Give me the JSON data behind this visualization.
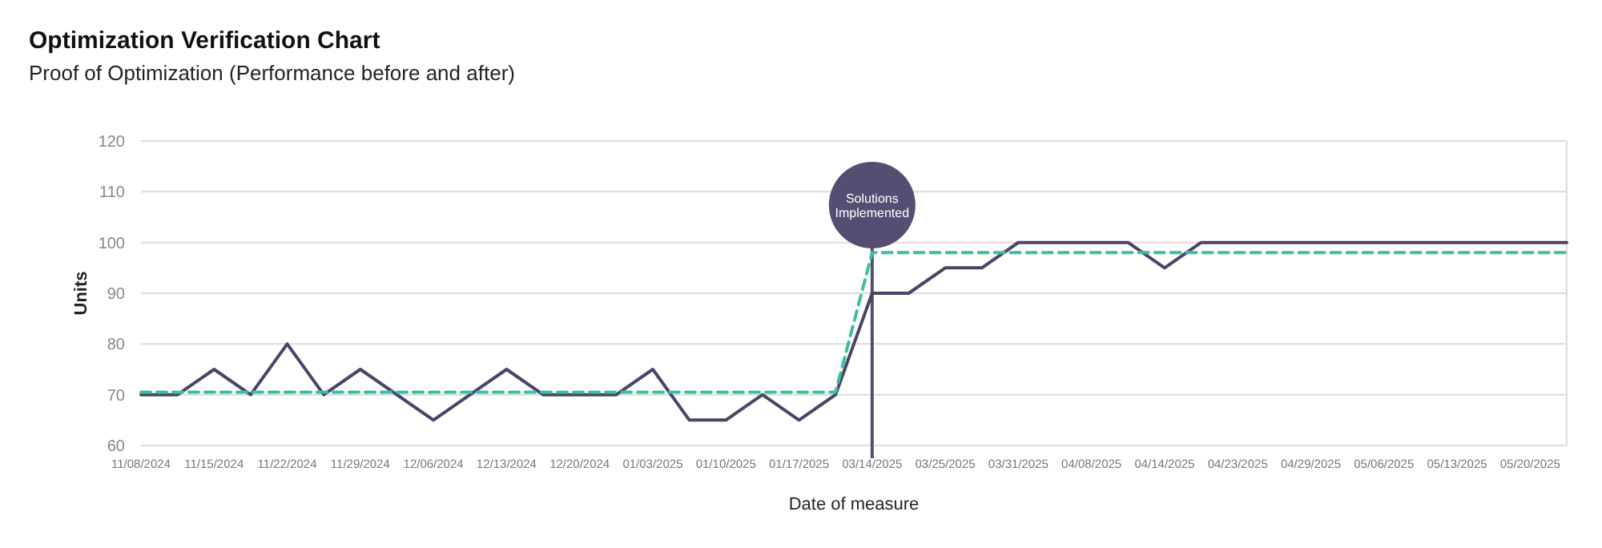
{
  "chart_data": {
    "type": "line",
    "title": "Optimization Verification Chart",
    "subtitle": "Proof of Optimization (Performance before and after)",
    "xlabel": "Date of measure",
    "ylabel": "Units",
    "categories": [
      "11/08/2024",
      null,
      "11/15/2024",
      null,
      "11/22/2024",
      null,
      "11/29/2024",
      null,
      "12/06/2024",
      null,
      "12/13/2024",
      null,
      "12/20/2024",
      null,
      "01/03/2025",
      null,
      "01/10/2025",
      null,
      "01/17/2025",
      null,
      "03/14/2025",
      null,
      "03/25/2025",
      null,
      "03/31/2025",
      null,
      "04/08/2025",
      null,
      "04/14/2025",
      null,
      "04/23/2025",
      null,
      "04/29/2025",
      null,
      "05/06/2025",
      null,
      "05/13/2025",
      null,
      "05/20/2025",
      null
    ],
    "series": [
      {
        "color": "#4a4566",
        "line_style": "solid",
        "values": [
          70,
          70,
          75,
          70,
          80,
          70,
          75,
          70,
          65,
          70,
          75,
          70,
          70,
          70,
          75,
          65,
          65,
          70,
          65,
          70,
          90,
          90,
          95,
          95,
          100,
          100,
          100,
          100,
          95,
          100,
          100,
          100,
          100,
          100,
          100,
          100,
          100,
          100,
          100,
          100
        ]
      },
      {
        "color": "#3dbf9f",
        "line_style": "dashed",
        "values": [
          70.5,
          70.5,
          70.5,
          70.5,
          70.5,
          70.5,
          70.5,
          70.5,
          70.5,
          70.5,
          70.5,
          70.5,
          70.5,
          70.5,
          70.5,
          70.5,
          70.5,
          70.5,
          70.5,
          70.5,
          98,
          98,
          98,
          98,
          98,
          98,
          98,
          98,
          98,
          98,
          98,
          98,
          98,
          98,
          98,
          98,
          98,
          98,
          98,
          98
        ]
      }
    ],
    "ylim": [
      60,
      120
    ],
    "yticks": [
      60,
      70,
      80,
      90,
      100,
      110,
      120
    ],
    "grid": "y",
    "marker": "none",
    "ref_lines": [
      {
        "axis": "x",
        "value": "03/14/2025",
        "label": "Solutions Implemented",
        "color": "#554d72"
      }
    ]
  }
}
